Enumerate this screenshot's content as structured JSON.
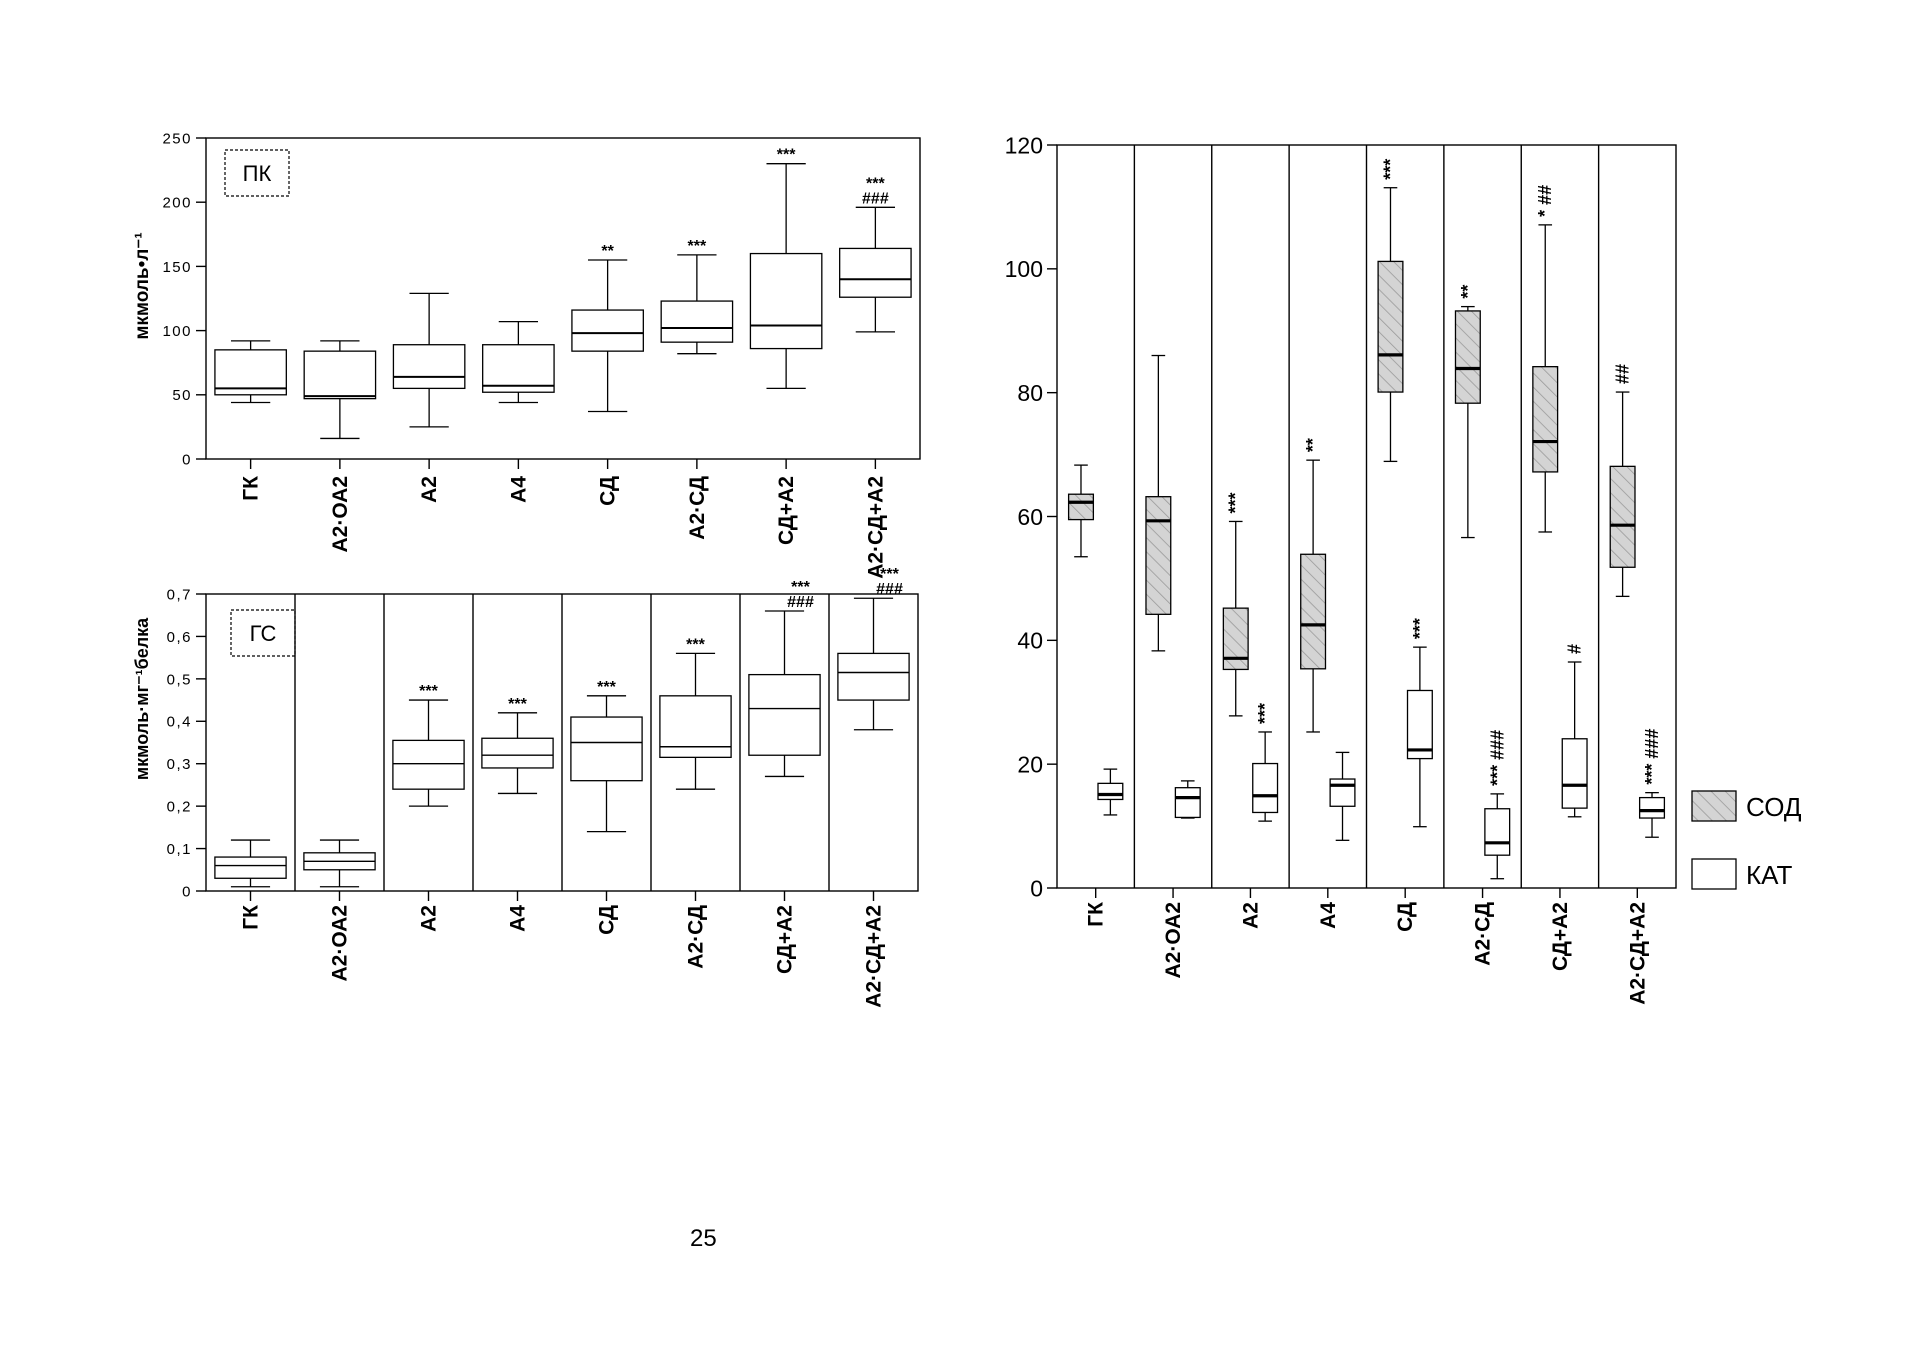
{
  "page_footer": "25",
  "chart_data": [
    {
      "type": "box",
      "panel_label": "ПК",
      "ylabel": "мкмоль•л⁻¹",
      "ylim": [
        0,
        250
      ],
      "yticks": [
        0,
        50,
        100,
        150,
        200,
        250
      ],
      "ytick_labels": [
        "0",
        "50",
        "100",
        "150",
        "200",
        "250"
      ],
      "categories": [
        "ГК",
        "А2·ОА2",
        "А2",
        "А4",
        "СД",
        "А2·СД",
        "СД+А2",
        "А2·СД+А2"
      ],
      "dividers": false,
      "series": [
        {
          "fill": "#ffffff",
          "boxes": [
            {
              "min": 44,
              "q1": 50,
              "median": 55,
              "q3": 85,
              "max": 92,
              "annotation": []
            },
            {
              "min": 16,
              "q1": 47,
              "median": 49,
              "q3": 84,
              "max": 92,
              "annotation": []
            },
            {
              "min": 25,
              "q1": 55,
              "median": 64,
              "q3": 89,
              "max": 129,
              "annotation": []
            },
            {
              "min": 44,
              "q1": 52,
              "median": 57,
              "q3": 89,
              "max": 107,
              "annotation": []
            },
            {
              "min": 37,
              "q1": 84,
              "median": 98,
              "q3": 116,
              "max": 155,
              "annotation": [
                "**"
              ]
            },
            {
              "min": 82,
              "q1": 91,
              "median": 102,
              "q3": 123,
              "max": 159,
              "annotation": [
                "***"
              ]
            },
            {
              "min": 55,
              "q1": 86,
              "median": 104,
              "q3": 160,
              "max": 230,
              "annotation": [
                "***"
              ]
            },
            {
              "min": 99,
              "q1": 126,
              "median": 140,
              "q3": 164,
              "max": 196,
              "annotation": [
                "***",
                "###"
              ]
            }
          ]
        }
      ]
    },
    {
      "type": "box",
      "panel_label": "ГС",
      "ylabel": "мкмоль·мг⁻¹белка",
      "ylim": [
        0,
        0.7
      ],
      "yticks": [
        0,
        0.1,
        0.2,
        0.3,
        0.4,
        0.5,
        0.6,
        0.7
      ],
      "ytick_labels": [
        "0",
        "0,1",
        "0,2",
        "0,3",
        "0,4",
        "0,5",
        "0,6",
        "0,7"
      ],
      "categories": [
        "ГК",
        "А2·ОА2",
        "А2",
        "А4",
        "СД",
        "А2·СД",
        "СД+А2",
        "А2·СД+А2"
      ],
      "dividers": true,
      "series": [
        {
          "fill": "#ffffff",
          "boxes": [
            {
              "min": 0.01,
              "q1": 0.03,
              "median": 0.06,
              "q3": 0.08,
              "max": 0.12,
              "annotation": []
            },
            {
              "min": 0.01,
              "q1": 0.05,
              "median": 0.07,
              "q3": 0.09,
              "max": 0.12,
              "annotation": []
            },
            {
              "min": 0.2,
              "q1": 0.24,
              "median": 0.3,
              "q3": 0.355,
              "max": 0.45,
              "annotation": [
                "***"
              ]
            },
            {
              "min": 0.23,
              "q1": 0.29,
              "median": 0.32,
              "q3": 0.36,
              "max": 0.42,
              "annotation": [
                "***"
              ]
            },
            {
              "min": 0.14,
              "q1": 0.26,
              "median": 0.35,
              "q3": 0.41,
              "max": 0.46,
              "annotation": [
                "***"
              ]
            },
            {
              "min": 0.24,
              "q1": 0.315,
              "median": 0.34,
              "q3": 0.46,
              "max": 0.56,
              "annotation": [
                "***"
              ]
            },
            {
              "min": 0.27,
              "q1": 0.32,
              "median": 0.43,
              "q3": 0.51,
              "max": 0.66,
              "annotation": [
                "***",
                "###"
              ]
            },
            {
              "min": 0.38,
              "q1": 0.45,
              "median": 0.515,
              "q3": 0.56,
              "max": 0.69,
              "annotation": [
                "***",
                "###"
              ]
            }
          ]
        }
      ]
    },
    {
      "type": "box",
      "ylim": [
        0,
        120
      ],
      "yticks": [
        0,
        20,
        40,
        60,
        80,
        100,
        120
      ],
      "ytick_labels": [
        "0",
        "20",
        "40",
        "60",
        "80",
        "100",
        "120"
      ],
      "categories": [
        "ГК",
        "А2·ОА2",
        "А2",
        "А4",
        "СД",
        "А2·СД",
        "СД+А2",
        "А2·СД+А2"
      ],
      "dividers": true,
      "legend_position": "right",
      "series": [
        {
          "name": "СОД",
          "fill": "#d4d4d4",
          "hatched": true,
          "boxes": [
            {
              "min": 53.5,
              "q1": 59.5,
              "median": 62.3,
              "q3": 63.6,
              "max": 68.3,
              "annotation": []
            },
            {
              "min": 38.3,
              "q1": 44.2,
              "median": 59.3,
              "q3": 63.2,
              "max": 86,
              "annotation": []
            },
            {
              "min": 27.8,
              "q1": 35.3,
              "median": 37.1,
              "q3": 45.2,
              "max": 59.2,
              "annotation": [
                "***"
              ]
            },
            {
              "min": 25.2,
              "q1": 35.4,
              "median": 42.5,
              "q3": 53.9,
              "max": 69.1,
              "annotation": [
                "**"
              ]
            },
            {
              "min": 68.9,
              "q1": 80.1,
              "median": 86.1,
              "q3": 101.2,
              "max": 113.1,
              "annotation": [
                "***"
              ]
            },
            {
              "min": 56.6,
              "q1": 78.3,
              "median": 83.9,
              "q3": 93.2,
              "max": 93.9,
              "annotation": [
                "**"
              ]
            },
            {
              "min": 57.5,
              "q1": 67.2,
              "median": 72.1,
              "q3": 84.2,
              "max": 107.1,
              "annotation": [
                "* ##"
              ]
            },
            {
              "min": 47.1,
              "q1": 51.8,
              "median": 58.6,
              "q3": 68.1,
              "max": 80.1,
              "annotation": [
                "##"
              ]
            }
          ]
        },
        {
          "name": "КАТ",
          "fill": "#ffffff",
          "hatched": false,
          "boxes": [
            {
              "min": 11.8,
              "q1": 14.3,
              "median": 15.1,
              "q3": 16.9,
              "max": 19.2,
              "annotation": []
            },
            {
              "min": 11.3,
              "q1": 11.4,
              "median": 14.6,
              "q3": 16.2,
              "max": 17.3,
              "annotation": []
            },
            {
              "min": 10.8,
              "q1": 12.2,
              "median": 14.9,
              "q3": 20.1,
              "max": 25.2,
              "annotation": [
                "***"
              ]
            },
            {
              "min": 7.7,
              "q1": 13.2,
              "median": 16.6,
              "q3": 17.6,
              "max": 21.9,
              "annotation": []
            },
            {
              "min": 9.9,
              "q1": 20.9,
              "median": 22.3,
              "q3": 31.9,
              "max": 38.9,
              "annotation": [
                "***"
              ]
            },
            {
              "min": 1.5,
              "q1": 5.3,
              "median": 7.3,
              "q3": 12.8,
              "max": 15.2,
              "annotation": [
                "*** ###"
              ]
            },
            {
              "min": 11.5,
              "q1": 12.9,
              "median": 16.6,
              "q3": 24.1,
              "max": 36.5,
              "annotation": [
                "#"
              ]
            },
            {
              "min": 8.2,
              "q1": 11.3,
              "median": 12.5,
              "q3": 14.6,
              "max": 15.4,
              "annotation": [
                "*** ###"
              ]
            }
          ]
        }
      ]
    }
  ]
}
